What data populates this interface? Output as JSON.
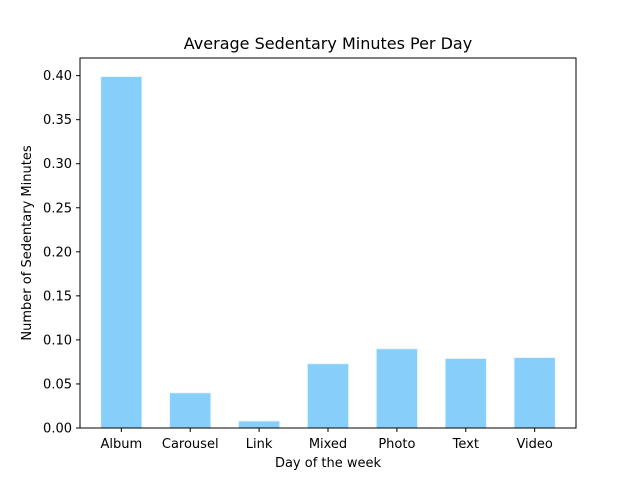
{
  "chart_data": {
    "type": "bar",
    "title": "Average Sedentary Minutes Per Day",
    "xlabel": "Day of the week",
    "ylabel": "Number of Sedentary Minutes",
    "categories": [
      "Album",
      "Carousel",
      "Link",
      "Mixed",
      "Photo",
      "Text",
      "Video"
    ],
    "values": [
      0.399,
      0.04,
      0.008,
      0.073,
      0.09,
      0.079,
      0.08
    ],
    "ylim": [
      0,
      0.42
    ],
    "yticks": [
      "0.00",
      "0.05",
      "0.10",
      "0.15",
      "0.20",
      "0.25",
      "0.30",
      "0.35",
      "0.40"
    ],
    "grid": false,
    "legend": "none",
    "colors": {
      "bar": "#87cefa",
      "bar_edge": "#e8f6fe",
      "axis": "#000000",
      "text": "#000000"
    }
  }
}
